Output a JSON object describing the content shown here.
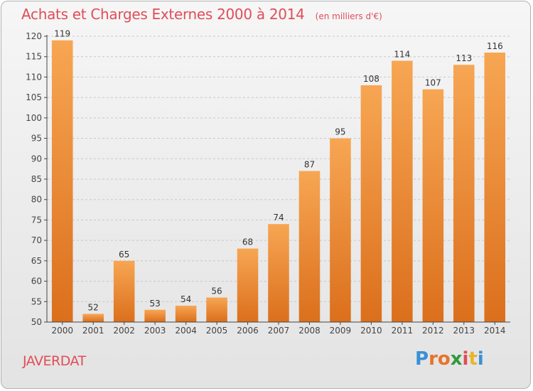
{
  "title": "Achats et Charges Externes 2000 à 2014",
  "subtitle": "(en milliers d'€)",
  "commune": "JAVERDAT",
  "logo": {
    "letters": [
      "P",
      "r",
      "o",
      "x",
      "i",
      "t",
      "i"
    ],
    "colors": [
      "#3a8fd6",
      "#e7732b",
      "#e7732b",
      "#2f9a3e",
      "#e04d58",
      "#e7b52b",
      "#3a8fd6"
    ]
  },
  "colors": {
    "bar_light": "#f7a653",
    "bar_dark": "#db6f1c",
    "axis": "#444444",
    "grid": "#c8c8c8",
    "title": "#e04d58"
  },
  "chart_data": {
    "type": "bar",
    "categories": [
      "2000",
      "2001",
      "2002",
      "2003",
      "2004",
      "2005",
      "2006",
      "2007",
      "2008",
      "2009",
      "2010",
      "2011",
      "2012",
      "2013",
      "2014"
    ],
    "values": [
      119,
      52,
      65,
      53,
      54,
      56,
      68,
      74,
      87,
      95,
      108,
      114,
      107,
      113,
      116
    ],
    "title": "Achats et Charges Externes 2000 à 2014",
    "xlabel": "",
    "ylabel": "",
    "ylim": [
      50,
      120
    ],
    "yticks": [
      50,
      55,
      60,
      65,
      70,
      75,
      80,
      85,
      90,
      95,
      100,
      105,
      110,
      115,
      120
    ],
    "grid": "horizontal"
  }
}
